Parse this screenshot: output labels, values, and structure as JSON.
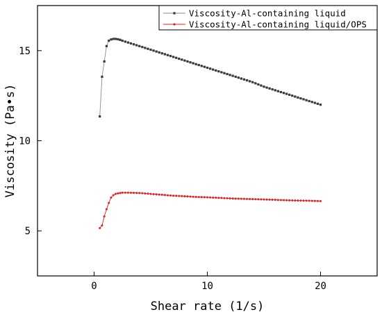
{
  "chart_data": {
    "type": "line",
    "title": "",
    "xlabel": "Shear rate (1/s)",
    "ylabel": "Viscosity (Pa•s)",
    "xlim": [
      -5,
      25
    ],
    "ylim": [
      2.5,
      17.5
    ],
    "xticks": [
      "0",
      "10",
      "20"
    ],
    "yticks": [
      "5",
      "10",
      "15"
    ],
    "xtick_values": [
      0,
      10,
      20
    ],
    "ytick_values": [
      5,
      10,
      15
    ],
    "grid": false,
    "legend_position": "top-right",
    "series": [
      {
        "name": "Viscosity-Al-containing liquid",
        "color": "#3a3a3a",
        "line_color": "#8a8a8a",
        "marker": "square",
        "x": [
          0.5,
          0.7,
          0.9,
          1.1,
          1.3,
          1.5,
          1.7,
          1.9,
          2.1,
          2.3,
          2.5,
          3,
          4,
          5,
          6,
          7,
          8,
          9,
          10,
          11,
          12,
          13,
          14,
          15,
          16,
          17,
          18,
          19,
          20
        ],
        "values": [
          11.35,
          13.55,
          14.4,
          15.25,
          15.55,
          15.62,
          15.65,
          15.65,
          15.63,
          15.6,
          15.55,
          15.45,
          15.25,
          15.05,
          14.85,
          14.65,
          14.45,
          14.25,
          14.05,
          13.85,
          13.65,
          13.45,
          13.25,
          13.0,
          12.8,
          12.6,
          12.4,
          12.2,
          12.0
        ]
      },
      {
        "name": "Viscosity-Al-containing liquid/OPS",
        "color": "#e02020",
        "line_color": "#e02020",
        "marker": "dot",
        "x": [
          0.5,
          0.7,
          0.9,
          1.1,
          1.3,
          1.5,
          1.7,
          1.9,
          2.1,
          2.3,
          2.5,
          3,
          4,
          5,
          6,
          7,
          8,
          9,
          10,
          11,
          12,
          13,
          14,
          15,
          16,
          17,
          18,
          19,
          20
        ],
        "values": [
          5.15,
          5.3,
          5.8,
          6.2,
          6.55,
          6.85,
          6.98,
          7.05,
          7.08,
          7.1,
          7.12,
          7.12,
          7.1,
          7.05,
          7.0,
          6.95,
          6.92,
          6.88,
          6.86,
          6.83,
          6.8,
          6.78,
          6.76,
          6.74,
          6.72,
          6.7,
          6.68,
          6.67,
          6.65
        ]
      }
    ]
  }
}
